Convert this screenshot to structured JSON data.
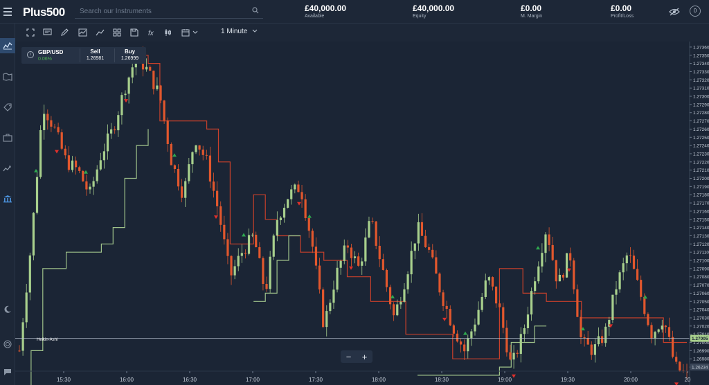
{
  "header": {
    "logo_text": "Plus500",
    "search_placeholder": "Search our Instruments",
    "metrics": [
      {
        "value": "£40,000.00",
        "label": "Available"
      },
      {
        "value": "£40,000.00",
        "label": "Equity"
      },
      {
        "value": "£0.00",
        "label": "M. Margin"
      },
      {
        "value": "£0.00",
        "label": "Profit/Loss"
      }
    ],
    "coin_badge": "0"
  },
  "toolbar": {
    "interval": "1 Minute"
  },
  "instrument": {
    "symbol": "GBP/USD",
    "change": "0.06%",
    "sell_label": "Sell",
    "sell_price": "1.26981",
    "buy_label": "Buy",
    "buy_price": "1.26999"
  },
  "chart_labels": {
    "indicator": "Heikin-Ashi",
    "zoom_out": "−",
    "zoom_in": "+",
    "current_price": "1.27005",
    "low_marker": "1.26234"
  },
  "colors": {
    "up_candle": "#a8d08d",
    "down_candle": "#e2572d",
    "upper_band": "#c8402b",
    "lower_band": "#9fc28a",
    "buy_signal": "#2fa84f",
    "sell_signal": "#e0302b",
    "background": "#1b2535"
  },
  "chart_data": {
    "type": "candlestick",
    "title": "",
    "x_ticks": [
      "15:30",
      "16:00",
      "16:30",
      "17:00",
      "17:30",
      "18:00",
      "18:30",
      "19:00",
      "19:30",
      "20:00",
      "20"
    ],
    "y_ticks": [
      "1.27360",
      "1.27350",
      "1.27340",
      "1.27330",
      "1.27320",
      "1.27310",
      "1.27300",
      "1.27290",
      "1.27280",
      "1.27270",
      "1.27260",
      "1.27250",
      "1.27240",
      "1.27230",
      "1.27220",
      "1.27210",
      "1.27200",
      "1.27190",
      "1.27180",
      "1.27170",
      "1.27160",
      "1.27150",
      "1.27140",
      "1.27130",
      "1.27120",
      "1.27110",
      "1.27100",
      "1.27090",
      "1.27080",
      "1.27070",
      "1.27060",
      "1.27050",
      "1.27040",
      "1.27030",
      "1.27020",
      "1.27010",
      "1.27000",
      "1.26990",
      "1.26980",
      "1.26970"
    ],
    "ylim": [
      1.26965,
      1.27365
    ],
    "close_path": [
      1.2699,
      1.2712,
      1.2729,
      1.2726,
      1.2722,
      1.2721,
      1.2718,
      1.2723,
      1.2726,
      1.2731,
      1.2735,
      1.2733,
      1.273,
      1.2722,
      1.2718,
      1.2725,
      1.2722,
      1.2716,
      1.2708,
      1.2711,
      1.2713,
      1.2706,
      1.2715,
      1.2718,
      1.2719,
      1.2712,
      1.2702,
      1.2708,
      1.2712,
      1.2709,
      1.2715,
      1.2709,
      1.2703,
      1.2708,
      1.2714,
      1.2711,
      1.2706,
      1.2702,
      1.2699,
      1.2703,
      1.2708,
      1.2704,
      1.2697,
      1.2701,
      1.2708,
      1.2714,
      1.2707,
      1.2711,
      1.27,
      1.2699,
      1.2701,
      1.2707,
      1.2711,
      1.2706,
      1.2701,
      1.2703,
      1.2697,
      1.2696
    ],
    "upper_band": [
      null,
      null,
      null,
      null,
      null,
      null,
      null,
      null,
      null,
      null,
      1.2735,
      1.2734,
      1.2727,
      1.2727,
      1.2727,
      1.2727,
      1.2726,
      1.2722,
      1.2712,
      1.2712,
      1.2718,
      1.2715,
      1.2713,
      1.2713,
      1.2711,
      1.2711,
      1.271,
      1.271,
      1.2708,
      1.2708,
      1.2705,
      1.2705,
      1.2705,
      1.2701,
      1.2701,
      1.2701,
      1.2701,
      1.2698,
      1.2698,
      1.2698,
      1.2698,
      1.2709,
      1.2709,
      1.2706,
      1.2706,
      1.2705,
      1.2705,
      1.2705,
      1.2703,
      1.2703,
      1.2703,
      1.2703,
      1.2703,
      1.2703,
      1.2703,
      1.27,
      1.27,
      1.27
    ],
    "lower_band": [
      1.2694,
      1.2699,
      1.2709,
      1.2709,
      1.2711,
      1.2711,
      1.2711,
      1.2712,
      1.2714,
      1.272,
      1.2724,
      1.2726,
      null,
      null,
      null,
      null,
      null,
      null,
      null,
      null,
      1.2705,
      1.2706,
      1.271,
      1.2713,
      1.2713,
      null,
      null,
      null,
      null,
      null,
      null,
      null,
      null,
      null,
      1.2696,
      1.2696,
      1.2696,
      1.2696,
      1.2696,
      1.2696,
      1.2696,
      1.2697,
      1.27,
      1.27,
      1.2702,
      1.2702,
      null,
      null,
      null,
      null,
      null,
      null,
      null,
      null,
      null,
      null,
      null,
      null
    ]
  }
}
